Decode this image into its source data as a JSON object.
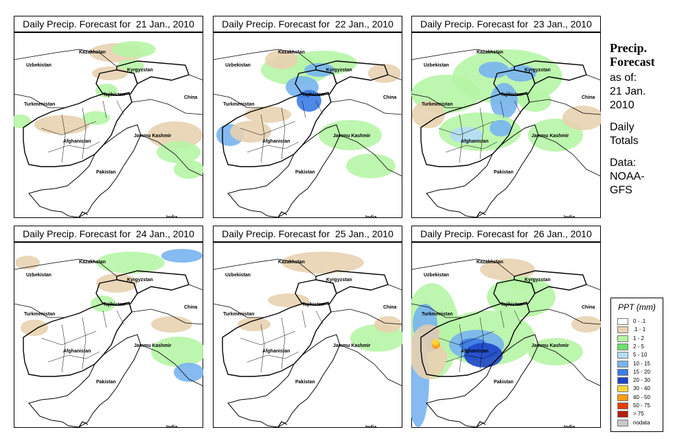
{
  "panels": [
    {
      "title": "Daily Precip. Forecast for  21 Jan., 2010",
      "variant": "p1"
    },
    {
      "title": "Daily Precip. Forecast for  22 Jan., 2010",
      "variant": "p2"
    },
    {
      "title": "Daily Precip. Forecast for  23 Jan., 2010",
      "variant": "p3"
    },
    {
      "title": "Daily Precip. Forecast for  24 Jan., 2010",
      "variant": "p4"
    },
    {
      "title": "Daily Precip. Forecast for  25 Jan., 2010",
      "variant": "p5"
    },
    {
      "title": "Daily Precip. Forecast for  26 Jan., 2010",
      "variant": "p6"
    }
  ],
  "map_labels": {
    "uzbekistan": "Uzbekistan",
    "kazakhstan": "Kazakhstan",
    "kyrgyzstan": "Kyrgyzstan",
    "tajikistan": "Tajikistan",
    "china": "China",
    "turkmenistan": "Turkmenistan",
    "afghanistan": "Afghanistan",
    "jammu_kashmir": "Jammu Kashmir",
    "pakistan": "Pakistan",
    "india": "India"
  },
  "sidebar": {
    "title_line1": "Precip.",
    "title_line2": "Forecast",
    "asof_line1": "as of:",
    "asof_line2": "21 Jan.",
    "asof_line3": "2010",
    "totals_line1": "Daily",
    "totals_line2": "Totals",
    "data_line1": "Data:",
    "data_line2": "NOAA-",
    "data_line3": "GFS"
  },
  "legend": {
    "title": "PPT (mm)",
    "items": [
      {
        "label": "0 - .1",
        "color": "#ffffff"
      },
      {
        "label": ".1 - 1",
        "color": "#e8d2b0"
      },
      {
        "label": "1 - 2",
        "color": "#b6f5a6"
      },
      {
        "label": "2 - 5",
        "color": "#6ce06c"
      },
      {
        "label": "5 - 10",
        "color": "#b4dcf5"
      },
      {
        "label": "10 - 15",
        "color": "#78b4f0"
      },
      {
        "label": "15 - 20",
        "color": "#3c7ce6"
      },
      {
        "label": "20 - 30",
        "color": "#1e46c8"
      },
      {
        "label": "30 - 40",
        "color": "#ffd73c"
      },
      {
        "label": "40 - 50",
        "color": "#ff9b14"
      },
      {
        "label": "50 - 75",
        "color": "#e63c0a"
      },
      {
        "label": "> 75",
        "color": "#b41e0a"
      },
      {
        "label": "nodata",
        "color": "#c8c8c8"
      }
    ]
  }
}
